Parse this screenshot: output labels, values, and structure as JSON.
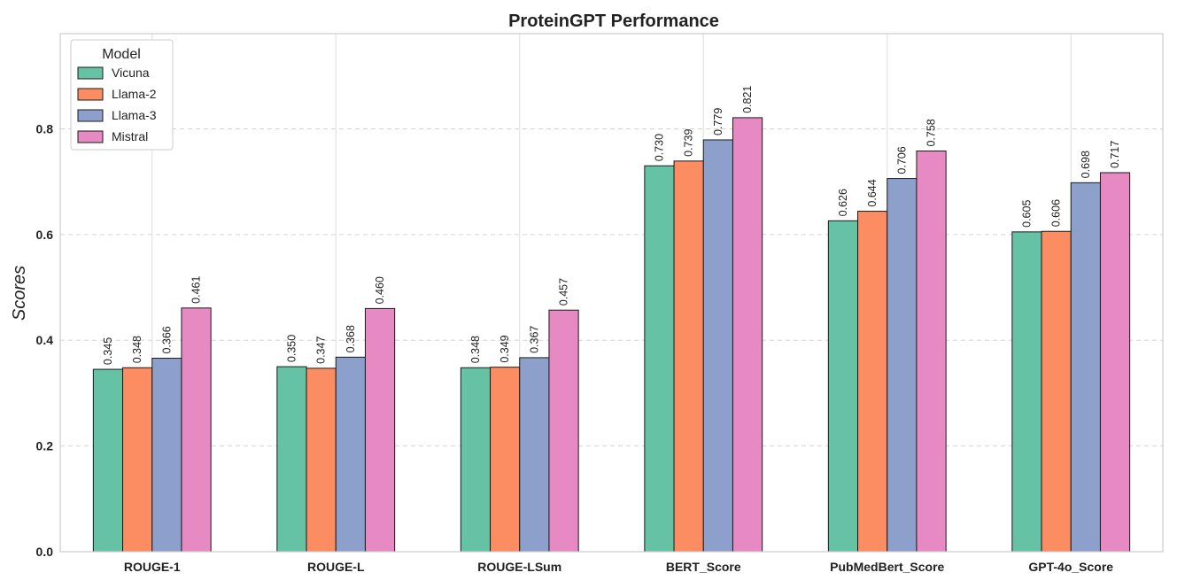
{
  "chart_data": {
    "type": "bar",
    "title": "ProteinGPT Performance",
    "xlabel": "",
    "ylabel": "Scores",
    "ylim": [
      0,
      0.98
    ],
    "yticks": [
      0.0,
      0.2,
      0.4,
      0.6,
      0.8
    ],
    "ytick_labels": [
      "0.0",
      "0.2",
      "0.4",
      "0.6",
      "0.8"
    ],
    "grid": true,
    "legend_title": "Model",
    "legend_position": "top-left",
    "categories": [
      "ROUGE-1",
      "ROUGE-L",
      "ROUGE-LSum",
      "BERT_Score",
      "PubMedBert_Score",
      "GPT-4o_Score"
    ],
    "series": [
      {
        "name": "Vicuna",
        "color": "#66c2a5",
        "values": [
          0.345,
          0.35,
          0.348,
          0.73,
          0.626,
          0.605
        ],
        "labels": [
          "0.345",
          "0.350",
          "0.348",
          "0.730",
          "0.626",
          "0.605"
        ]
      },
      {
        "name": "Llama-2",
        "color": "#fc8d62",
        "values": [
          0.348,
          0.347,
          0.349,
          0.739,
          0.644,
          0.606
        ],
        "labels": [
          "0.348",
          "0.347",
          "0.349",
          "0.739",
          "0.644",
          "0.606"
        ]
      },
      {
        "name": "Llama-3",
        "color": "#8da0cb",
        "values": [
          0.366,
          0.368,
          0.367,
          0.779,
          0.706,
          0.698
        ],
        "labels": [
          "0.366",
          "0.368",
          "0.367",
          "0.779",
          "0.706",
          "0.698"
        ]
      },
      {
        "name": "Mistral",
        "color": "#e78ac3",
        "values": [
          0.461,
          0.46,
          0.457,
          0.821,
          0.758,
          0.717
        ],
        "labels": [
          "0.461",
          "0.460",
          "0.457",
          "0.821",
          "0.758",
          "0.717"
        ]
      }
    ]
  }
}
